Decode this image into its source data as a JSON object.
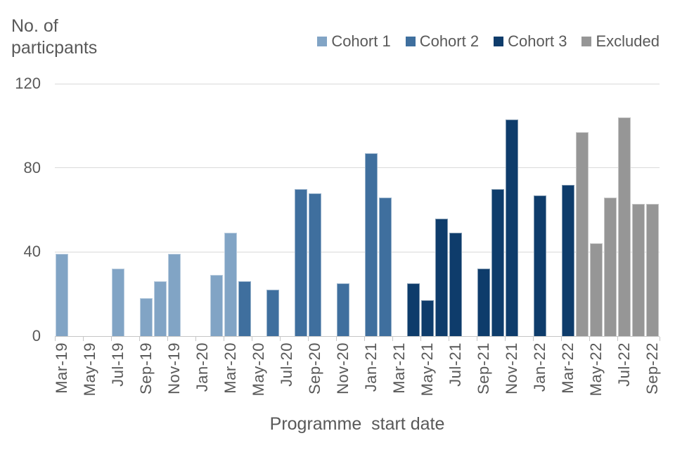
{
  "chart_data": {
    "type": "bar",
    "title": "",
    "y_axis_title_lines": [
      "No. of",
      "particpants"
    ],
    "x_axis_title": "Programme  start date",
    "ylim": [
      0,
      120
    ],
    "yticks": [
      0,
      40,
      80,
      120
    ],
    "grid": "horizontal",
    "legend_position": "top-right",
    "x_tick_interval": 2,
    "x_tick_label_rotation": 90,
    "legend": [
      {
        "label": "Cohort 1",
        "color": "#81A4C5"
      },
      {
        "label": "Cohort 2",
        "color": "#3F6F9E"
      },
      {
        "label": "Cohort 3",
        "color": "#0E3C6B"
      },
      {
        "label": "Excluded",
        "color": "#969696"
      }
    ],
    "categories": [
      "Mar-19",
      "Apr-19",
      "May-19",
      "Jun-19",
      "Jul-19",
      "Aug-19",
      "Sep-19",
      "Oct-19",
      "Nov-19",
      "Dec-19",
      "Jan-20",
      "Feb-20",
      "Mar-20",
      "Apr-20",
      "May-20",
      "Jun-20",
      "Jul-20",
      "Aug-20",
      "Sep-20",
      "Oct-20",
      "Nov-20",
      "Dec-20",
      "Jan-21",
      "Feb-21",
      "Mar-21",
      "Apr-21",
      "May-21",
      "Jun-21",
      "Jul-21",
      "Aug-21",
      "Sep-21",
      "Oct-21",
      "Nov-21",
      "Dec-21",
      "Jan-22",
      "Feb-22",
      "Mar-22",
      "Apr-22",
      "May-22",
      "Jun-22",
      "Jul-22",
      "Aug-22",
      "Sep-22"
    ],
    "values": [
      39,
      0,
      0,
      0,
      32,
      0,
      18,
      26,
      39,
      0,
      0,
      29,
      49,
      26,
      0,
      22,
      0,
      70,
      68,
      0,
      25,
      0,
      87,
      66,
      0,
      25,
      17,
      56,
      49,
      0,
      32,
      70,
      103,
      0,
      67,
      0,
      72,
      97,
      44,
      66,
      104,
      63,
      63
    ],
    "series_index": [
      0,
      -1,
      -1,
      -1,
      0,
      -1,
      0,
      0,
      0,
      -1,
      -1,
      0,
      0,
      1,
      -1,
      1,
      -1,
      1,
      1,
      -1,
      1,
      -1,
      1,
      1,
      -1,
      2,
      2,
      2,
      2,
      -1,
      2,
      2,
      2,
      -1,
      2,
      -1,
      2,
      3,
      3,
      3,
      3,
      3,
      3
    ],
    "colors": {
      "text": "#595959",
      "gridline": "#d9d9d9",
      "axis_line": "#c6c6c6"
    }
  }
}
